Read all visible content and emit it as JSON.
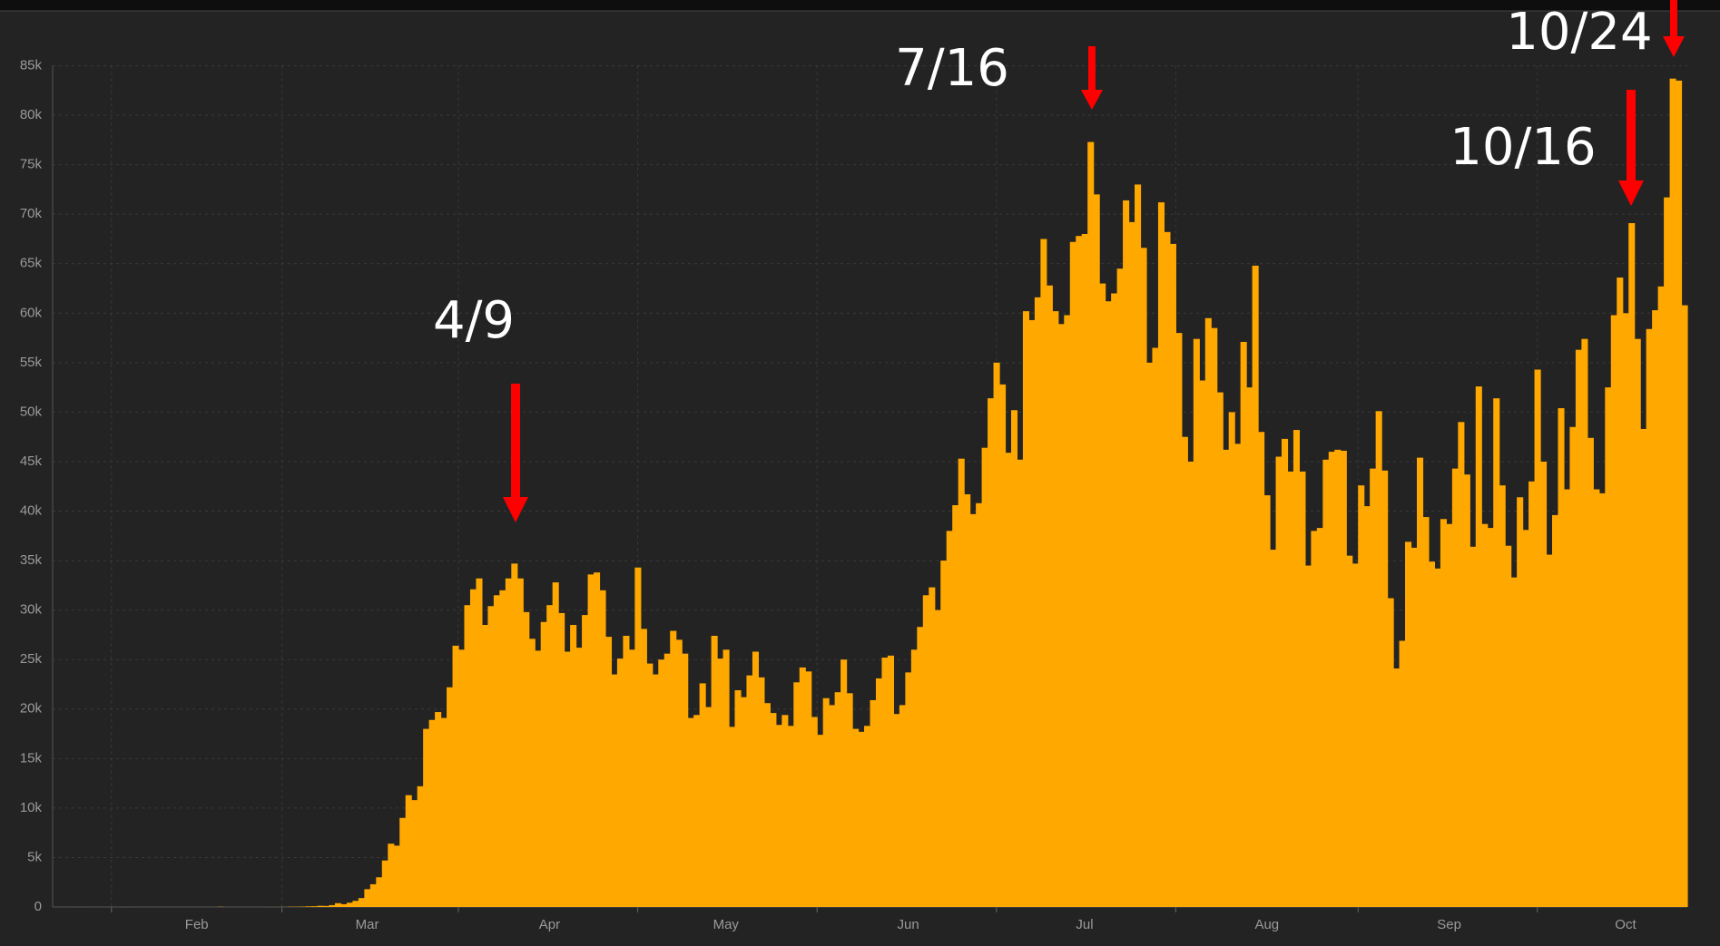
{
  "chart_data": {
    "type": "bar",
    "color": "#ffa800",
    "ylim": [
      0,
      85000
    ],
    "yticks": [
      0,
      {
        "value": 5000,
        "label": "5k"
      },
      {
        "value": 10000,
        "label": "10k"
      },
      {
        "value": 15000,
        "label": "15k"
      },
      {
        "value": 20000,
        "label": "20k"
      },
      {
        "value": 25000,
        "label": "25k"
      },
      {
        "value": 30000,
        "label": "30k"
      },
      {
        "value": 35000,
        "label": "35k"
      },
      {
        "value": 40000,
        "label": "40k"
      },
      {
        "value": 45000,
        "label": "45k"
      },
      {
        "value": 50000,
        "label": "50k"
      },
      {
        "value": 55000,
        "label": "55k"
      },
      {
        "value": 60000,
        "label": "60k"
      },
      {
        "value": 65000,
        "label": "65k"
      },
      {
        "value": 70000,
        "label": "70k"
      },
      {
        "value": 75000,
        "label": "75k"
      },
      {
        "value": 80000,
        "label": "80k"
      },
      {
        "value": 85000,
        "label": "85k"
      }
    ],
    "grid": true,
    "annotations": [
      "4/9",
      "7/16",
      "10/16",
      "10/24"
    ],
    "categories": [
      null,
      null,
      null,
      null,
      null,
      null,
      null,
      null,
      null,
      null,
      null,
      null,
      null,
      null,
      null,
      null,
      null,
      null,
      null,
      null,
      null,
      null,
      null,
      null,
      "Feb",
      null,
      null,
      null,
      null,
      null,
      null,
      null,
      null,
      null,
      null,
      null,
      null,
      null,
      null,
      null,
      null,
      null,
      null,
      null,
      null,
      null,
      null,
      null,
      null,
      null,
      null,
      null,
      null,
      "Mar",
      null,
      null,
      null,
      null,
      null,
      null,
      null,
      null,
      null,
      null,
      null,
      null,
      null,
      null,
      null,
      null,
      null,
      null,
      null,
      null,
      null,
      null,
      null,
      null,
      null,
      null,
      null,
      null,
      null,
      null,
      "Apr",
      null,
      null,
      null,
      null,
      null,
      null,
      null,
      null,
      null,
      null,
      null,
      null,
      null,
      null,
      null,
      null,
      null,
      null,
      null,
      null,
      null,
      null,
      null,
      null,
      null,
      null,
      null,
      null,
      null,
      "May",
      null,
      null,
      null,
      null,
      null,
      null,
      null,
      null,
      null,
      null,
      null,
      null,
      null,
      null,
      null,
      null,
      null,
      null,
      null,
      null,
      null,
      null,
      null,
      null,
      null,
      null,
      null,
      null,
      null,
      null,
      "Jun",
      null,
      null,
      null,
      null,
      null,
      null,
      null,
      null,
      null,
      null,
      null,
      null,
      null,
      null,
      null,
      null,
      null,
      null,
      null,
      null,
      null,
      null,
      null,
      null,
      null,
      null,
      null,
      null,
      null,
      "Jul",
      null,
      null,
      null,
      null,
      null,
      null,
      null,
      null,
      null,
      null,
      null,
      null,
      null,
      null,
      null,
      null,
      null,
      null,
      null,
      null,
      null,
      null,
      null,
      null,
      null,
      null,
      null,
      null,
      null,
      null,
      "Aug",
      null,
      null,
      null,
      null,
      null,
      null,
      null,
      null,
      null,
      null,
      null,
      null,
      null,
      null,
      null,
      null,
      null,
      null,
      null,
      null,
      null,
      null,
      null,
      null,
      null,
      null,
      null,
      null,
      null,
      null,
      "Sep",
      null,
      null,
      null,
      null,
      null,
      null,
      null,
      null,
      null,
      null,
      null,
      null,
      null,
      null,
      null,
      null,
      null,
      null,
      null,
      null,
      null,
      null,
      null,
      null,
      null,
      null,
      null,
      null,
      null,
      "Oct",
      null,
      null,
      null,
      null,
      null,
      null,
      null,
      null,
      null,
      null
    ],
    "values": [
      0,
      0,
      1,
      0,
      3,
      0,
      0,
      0,
      0,
      1,
      1,
      0,
      2,
      0,
      1,
      0,
      0,
      0,
      0,
      1,
      0,
      1,
      0,
      0,
      0,
      0,
      0,
      0,
      20,
      0,
      0,
      0,
      0,
      1,
      0,
      0,
      3,
      0,
      6,
      9,
      22,
      26,
      35,
      62,
      77,
      120,
      106,
      188,
      384,
      280,
      434,
      620,
      900,
      1800,
      2300,
      3000,
      4700,
      6400,
      6200,
      9000,
      11300,
      10800,
      12200,
      18000,
      18900,
      19700,
      19100,
      22200,
      26400,
      26000,
      30500,
      32100,
      33200,
      28500,
      30400,
      31500,
      32000,
      33200,
      34700,
      33200,
      29800,
      27100,
      25900,
      28800,
      30500,
      32800,
      29700,
      25800,
      28500,
      26200,
      29500,
      33600,
      33800,
      32000,
      27300,
      23500,
      25100,
      27400,
      26000,
      34300,
      28100,
      24600,
      23500,
      25000,
      25600,
      27900,
      27000,
      25600,
      19100,
      19400,
      22600,
      20200,
      27400,
      25100,
      26000,
      18200,
      21900,
      21200,
      23400,
      25800,
      23200,
      20600,
      19600,
      18400,
      19400,
      18300,
      22700,
      24200,
      23800,
      19200,
      17400,
      21100,
      20400,
      21700,
      25000,
      21600,
      18000,
      17700,
      18300,
      20900,
      23100,
      25200,
      25400,
      19500,
      20400,
      23700,
      26000,
      28300,
      31500,
      32300,
      30000,
      35000,
      38000,
      40600,
      45300,
      41700,
      39700,
      40800,
      46400,
      51400,
      55000,
      52800,
      45900,
      50200,
      45200,
      60200,
      59300,
      61600,
      67500,
      62800,
      60200,
      58900,
      59800,
      67200,
      67800,
      68000,
      77300,
      72000,
      63000,
      61200,
      62000,
      64500,
      71400,
      69200,
      73000,
      66600,
      55000,
      56500,
      71200,
      68200,
      67000,
      58000,
      47500,
      45000,
      57400,
      53200,
      59500,
      58500,
      52000,
      46200,
      50000,
      46800,
      57100,
      52500,
      64800,
      48000,
      41600,
      36100,
      45500,
      47300,
      44000,
      48200,
      44000,
      34500,
      38000,
      38300,
      45200,
      46000,
      46200,
      46100,
      35500,
      34700,
      42600,
      40500,
      44300,
      50100,
      44100,
      31200,
      24100,
      26900,
      36900,
      36300,
      45400,
      39400,
      34900,
      34200,
      39200,
      38700,
      44300,
      49000,
      43700,
      36400,
      52600,
      38700,
      38300,
      51400,
      42600,
      36500,
      33300,
      41400,
      38100,
      43000,
      54300,
      45000,
      35600,
      39600,
      50400,
      42200,
      48500,
      56300,
      57400,
      47400,
      42200,
      41800,
      52500,
      59800,
      63600,
      60000,
      69100,
      57400,
      48300,
      58400,
      60300,
      62700,
      71700,
      83700,
      83500,
      60800
    ]
  }
}
